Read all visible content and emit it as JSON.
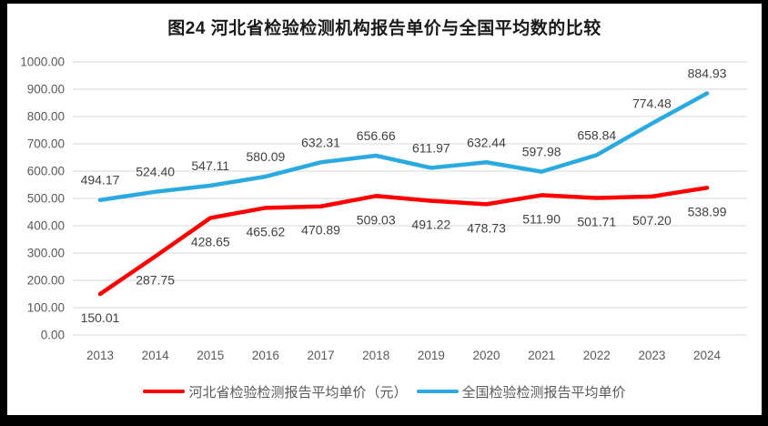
{
  "frame": {
    "border_color": "#000000",
    "background_color": "#ffffff"
  },
  "chart_data": {
    "type": "line",
    "title": "图24  河北省检验检测机构报告单价与全国平均数的比较",
    "categories": [
      "2013",
      "2014",
      "2015",
      "2016",
      "2017",
      "2018",
      "2019",
      "2020",
      "2021",
      "2022",
      "2023",
      "2024"
    ],
    "series": [
      {
        "name": "河北省检验检测报告平均单价（元）",
        "color": "#FF0000",
        "label_position": "below",
        "values": [
          150.01,
          287.75,
          428.65,
          465.62,
          470.89,
          509.03,
          491.22,
          478.73,
          511.9,
          501.71,
          507.2,
          538.99
        ]
      },
      {
        "name": "全国检验检测报告平均单价",
        "color": "#2BAAE2",
        "label_position": "above",
        "values": [
          494.17,
          524.4,
          547.11,
          580.09,
          632.31,
          656.66,
          611.97,
          632.44,
          597.98,
          658.84,
          774.48,
          884.93
        ]
      }
    ],
    "xlabel": "",
    "ylabel": "",
    "ylim": [
      0,
      1000
    ],
    "ytick_step": 100,
    "ytick_labels": [
      "0.00",
      "100.00",
      "200.00",
      "300.00",
      "400.00",
      "500.00",
      "600.00",
      "700.00",
      "800.00",
      "900.00",
      "1000.00"
    ],
    "value_label_decimals": 2,
    "grid": true,
    "legend_position": "bottom",
    "colors": {
      "gridline": "#D9D9D9",
      "axis_label": "#595959",
      "data_label": "#404040",
      "title": "#1a1a1a"
    }
  }
}
